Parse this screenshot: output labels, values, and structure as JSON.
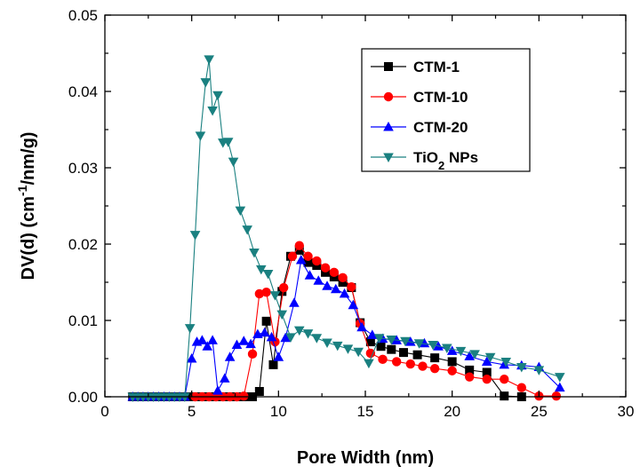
{
  "chart_data": {
    "type": "line",
    "xlabel": "Pore Width (nm)",
    "ylabel_parts": [
      "DV(d) (cm",
      "-1",
      "/nm/g)"
    ],
    "xlim": [
      0,
      30
    ],
    "ylim": [
      0,
      0.05
    ],
    "x_ticks": [
      "0",
      "5",
      "10",
      "15",
      "20",
      "25",
      "30"
    ],
    "y_ticks": [
      "0.00",
      "0.01",
      "0.02",
      "0.03",
      "0.04",
      "0.05"
    ],
    "legend_position": "top-right",
    "series": [
      {
        "name": "CTM-1",
        "legend_parts": [
          "CTM-1"
        ],
        "color": "#000000",
        "marker": "square",
        "x": [
          1.6,
          1.9,
          2.2,
          2.5,
          2.8,
          3.1,
          3.4,
          3.7,
          4.0,
          4.3,
          4.6,
          4.9,
          5.2,
          5.5,
          5.8,
          6.1,
          6.4,
          6.7,
          7.0,
          7.3,
          7.6,
          7.9,
          8.2,
          8.5,
          8.9,
          9.3,
          9.7,
          10.2,
          10.7,
          11.2,
          11.7,
          12.2,
          12.7,
          13.2,
          13.7,
          14.2,
          14.7,
          15.3,
          15.9,
          16.5,
          17.2,
          18.0,
          19.0,
          20.0,
          21.0,
          22.0,
          23.0,
          24.0
        ],
        "y": [
          0,
          0,
          0,
          0,
          0,
          0,
          0,
          0,
          0,
          0,
          0,
          0,
          0,
          0,
          0,
          0,
          0,
          0,
          0,
          0,
          0,
          0,
          0,
          0,
          0.0007,
          0.0099,
          0.0042,
          0.0138,
          0.0184,
          0.0192,
          0.0176,
          0.0172,
          0.0163,
          0.0157,
          0.015,
          0.0143,
          0.0097,
          0.0072,
          0.0066,
          0.0062,
          0.0058,
          0.0055,
          0.0051,
          0.0046,
          0.0035,
          0.0032,
          0.0001,
          0.0
        ]
      },
      {
        "name": "CTM-10",
        "legend_parts": [
          "CTM-10"
        ],
        "color": "#ff0000",
        "marker": "circle",
        "x": [
          5.2,
          5.6,
          6.0,
          6.4,
          6.8,
          7.2,
          7.6,
          8.0,
          8.5,
          8.9,
          9.3,
          9.8,
          10.3,
          10.8,
          11.2,
          11.7,
          12.2,
          12.7,
          13.2,
          13.7,
          14.2,
          14.7,
          15.3,
          16.0,
          16.8,
          17.6,
          18.3,
          19.0,
          20.0,
          21.0,
          22.0,
          23.0,
          24.0,
          25.0,
          26.0
        ],
        "y": [
          0,
          0,
          0,
          0,
          0,
          0,
          0,
          0.0001,
          0.0056,
          0.0135,
          0.0137,
          0.0072,
          0.0143,
          0.0184,
          0.0198,
          0.0184,
          0.0178,
          0.0169,
          0.0163,
          0.0156,
          0.0144,
          0.0096,
          0.0057,
          0.0049,
          0.0046,
          0.0043,
          0.004,
          0.0037,
          0.0034,
          0.0026,
          0.0023,
          0.0023,
          0.0012,
          0.0001,
          0.0001
        ]
      },
      {
        "name": "CTM-20",
        "legend_parts": [
          "CTM-20"
        ],
        "color": "#0000ff",
        "marker": "triangle-up",
        "x": [
          1.6,
          1.9,
          2.2,
          2.5,
          2.8,
          3.1,
          3.4,
          3.7,
          4.0,
          4.3,
          4.6,
          5.0,
          5.3,
          5.6,
          5.9,
          6.2,
          6.5,
          6.9,
          7.2,
          7.6,
          8.0,
          8.4,
          8.8,
          9.2,
          9.6,
          10.0,
          10.4,
          10.9,
          11.3,
          11.8,
          12.3,
          12.8,
          13.3,
          13.8,
          14.3,
          14.8,
          15.4,
          16.0,
          16.8,
          17.6,
          18.4,
          19.2,
          20.0,
          21.0,
          22.0,
          23.0,
          24.0,
          25.0,
          26.2
        ],
        "y": [
          0,
          0,
          0,
          0,
          0,
          0,
          0,
          0,
          0,
          0,
          0,
          0.005,
          0.0072,
          0.0074,
          0.0066,
          0.0074,
          0.0008,
          0.0024,
          0.0052,
          0.0068,
          0.0073,
          0.0069,
          0.0082,
          0.0084,
          0.0078,
          0.0052,
          0.0077,
          0.0123,
          0.0179,
          0.0159,
          0.0152,
          0.0145,
          0.0141,
          0.0135,
          0.012,
          0.0091,
          0.0081,
          0.0076,
          0.0074,
          0.0072,
          0.007,
          0.0066,
          0.006,
          0.0053,
          0.0046,
          0.0042,
          0.0041,
          0.0039,
          0.0012
        ]
      },
      {
        "name": "TiO2 NPs",
        "legend_parts": [
          "TiO",
          "2",
          " NPs"
        ],
        "color": "#1a8080",
        "marker": "triangle-down",
        "x": [
          1.6,
          1.9,
          2.2,
          2.5,
          2.8,
          3.1,
          3.4,
          3.7,
          4.0,
          4.3,
          4.6,
          4.9,
          5.2,
          5.5,
          5.8,
          6.0,
          6.2,
          6.5,
          6.8,
          7.1,
          7.4,
          7.8,
          8.2,
          8.6,
          9.0,
          9.4,
          9.8,
          10.2,
          10.7,
          11.2,
          11.7,
          12.2,
          12.8,
          13.4,
          14.0,
          14.6,
          15.2,
          15.8,
          16.5,
          17.3,
          18.1,
          18.9,
          19.7,
          20.5,
          21.3,
          22.2,
          23.1,
          24.0,
          25.0,
          26.2
        ],
        "y": [
          0,
          0,
          0,
          0,
          0,
          0,
          0,
          0,
          0,
          0,
          0,
          0.009,
          0.0212,
          0.0342,
          0.0412,
          0.0442,
          0.0375,
          0.0395,
          0.0333,
          0.0334,
          0.0308,
          0.0244,
          0.0219,
          0.0189,
          0.0167,
          0.0161,
          0.0133,
          0.0108,
          0.0078,
          0.0087,
          0.0083,
          0.0077,
          0.0071,
          0.0067,
          0.0063,
          0.0059,
          0.0044,
          0.0077,
          0.0075,
          0.0073,
          0.007,
          0.0068,
          0.0064,
          0.006,
          0.0056,
          0.0052,
          0.0046,
          0.0039,
          0.0035,
          0.0026
        ]
      }
    ]
  }
}
